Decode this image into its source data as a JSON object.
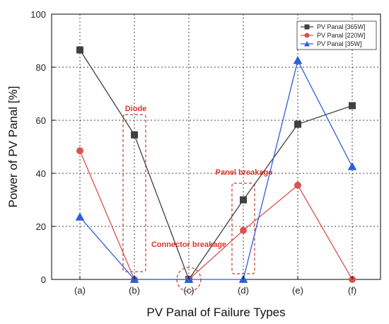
{
  "chart_data": {
    "type": "line",
    "xlabel": "PV Panal of Failure Types",
    "ylabel": "Power of PV Panal [%]",
    "categories": [
      "(a)",
      "(b)",
      "(c)",
      "(d)",
      "(e)",
      "(f)"
    ],
    "ylim": [
      0,
      100
    ],
    "yticks": [
      0,
      20,
      40,
      60,
      80,
      100
    ],
    "grid": true,
    "legend_position": "top-right",
    "series": [
      {
        "name": "PV Panal [365W]",
        "color": "#404040",
        "marker": "square",
        "values": [
          86.5,
          54.5,
          0,
          30,
          58.5,
          65.5
        ]
      },
      {
        "name": "PV Panal [220W]",
        "color": "#d9534f",
        "marker": "circle",
        "values": [
          48.5,
          0,
          0,
          18.5,
          35.5,
          0
        ]
      },
      {
        "name": "PV Panal [35W]",
        "color": "#2f5fd8",
        "marker": "triangle",
        "values": [
          23.5,
          0,
          0,
          0,
          82.5,
          42.5
        ]
      }
    ],
    "annotations": [
      {
        "label": "Diode",
        "category": "(b)"
      },
      {
        "label": "Connector breakage",
        "category": "(c)"
      },
      {
        "label": "Panel breakage",
        "category": "(d)"
      }
    ]
  }
}
